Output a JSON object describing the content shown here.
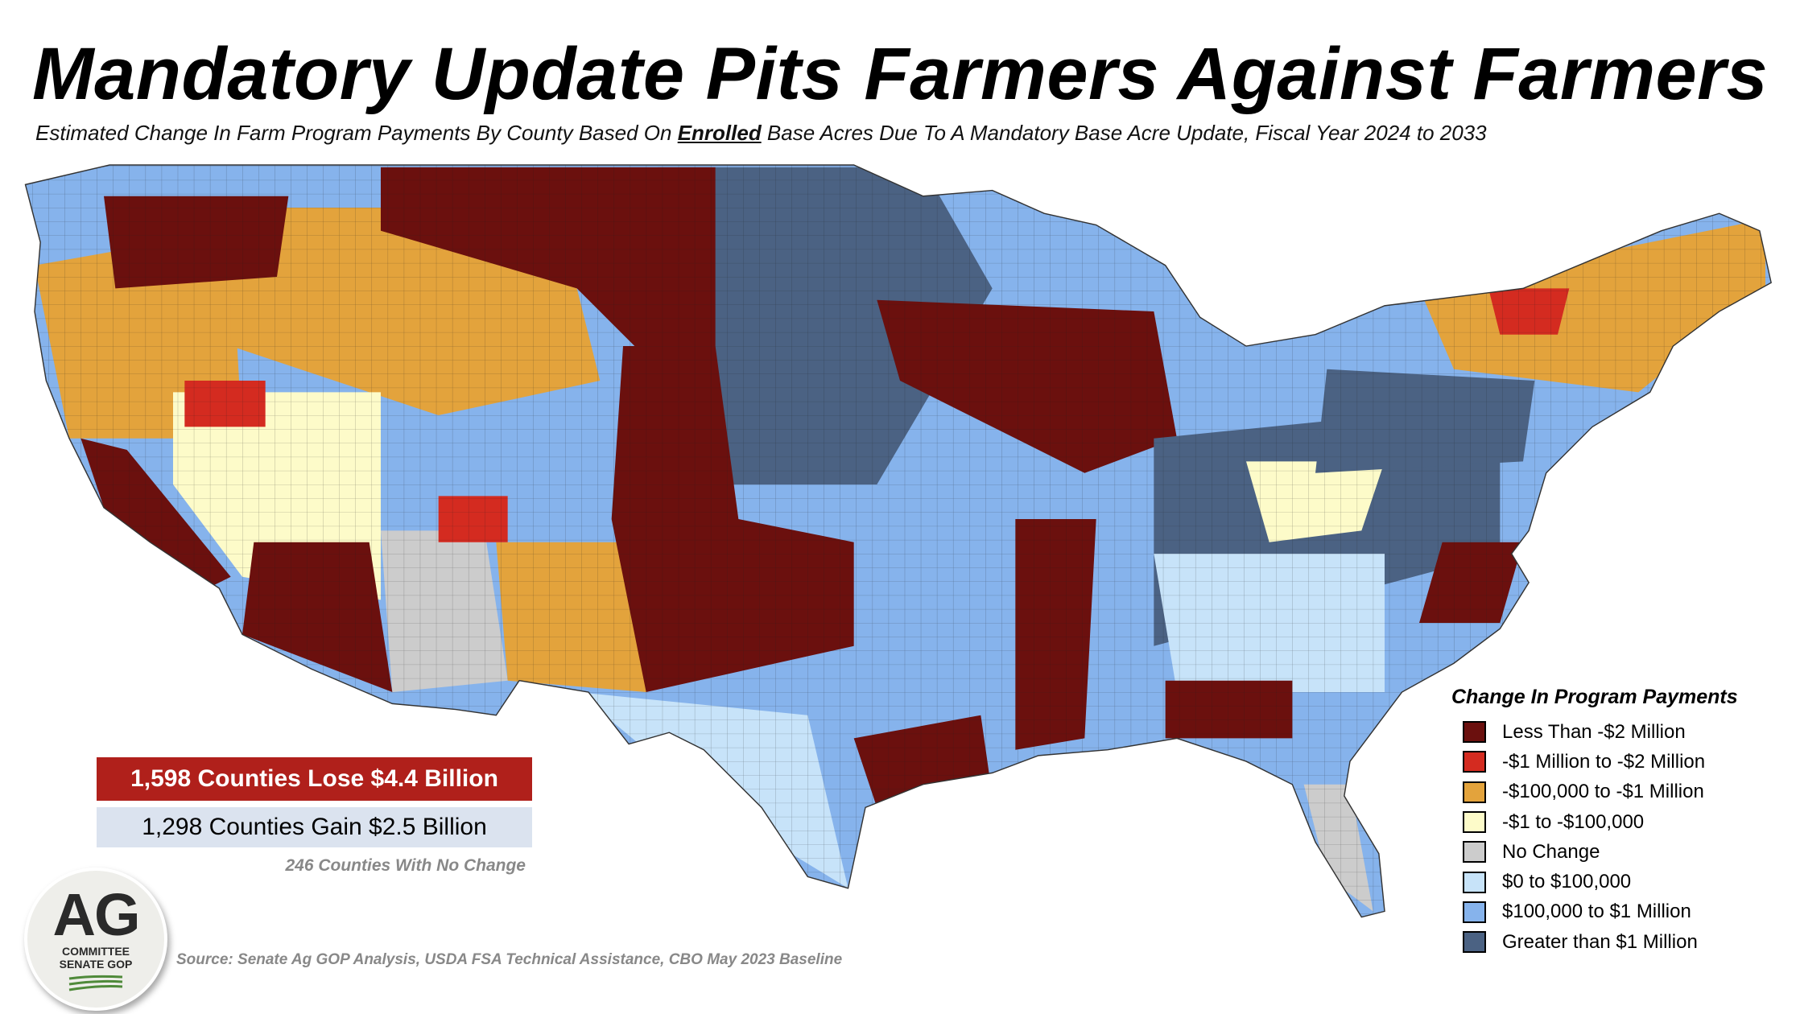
{
  "header": {
    "title": "Mandatory Update Pits Farmers Against Farmers",
    "subtitle_pre": "Estimated Change In Farm Program Payments By County Based On ",
    "subtitle_em": "Enrolled",
    "subtitle_post": " Base Acres Due To A Mandatory Base Acre Update, Fiscal Year 2024 to 2033"
  },
  "summary": {
    "lose": "1,598 Counties  Lose $4.4 Billion",
    "gain": "1,298 Counties Gain $2.5 Billion",
    "no_change": "246 Counties With No Change"
  },
  "legend": {
    "title": "Change In Program Payments",
    "items": [
      {
        "label": "Less Than -$2 Million",
        "color": "#6b100e"
      },
      {
        "label": "-$1 Million to -$2 Million",
        "color": "#d42b20"
      },
      {
        "label": "-$100,000 to -$1 Million",
        "color": "#e3a33c"
      },
      {
        "label": "-$1 to -$100,000",
        "color": "#fdfbc9"
      },
      {
        "label": "No Change",
        "color": "#cccccc"
      },
      {
        "label": "$0 to $100,000",
        "color": "#c7e3f9"
      },
      {
        "label": "$100,000 to $1 Million",
        "color": "#86b3ec"
      },
      {
        "label": "Greater than $1 Million",
        "color": "#4b6283"
      }
    ]
  },
  "source": "Source: Senate Ag GOP Analysis, USDA FSA Technical Assistance, CBO May 2023 Baseline",
  "logo": {
    "ag": "AG",
    "line1": "COMMITTEE",
    "line2": "SENATE GOP"
  }
}
